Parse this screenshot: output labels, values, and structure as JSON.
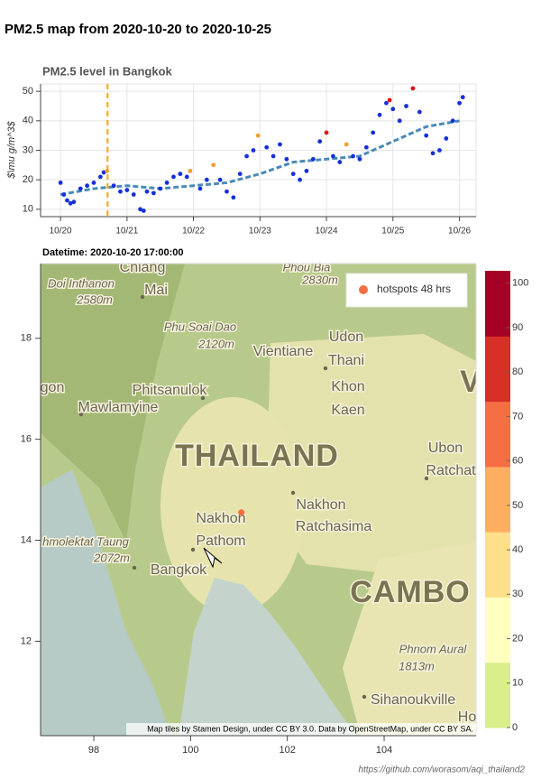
{
  "title": "PM2.5 map from 2020-10-20 to 2020-10-25",
  "footer": "https://github.com/worasom/aqi_thailand2",
  "chart_data": [
    {
      "type": "scatter",
      "title": "PM2.5 level in Bangkok",
      "y_label": "$\\mu g/m^3$",
      "xlim": [
        -0.3,
        6.25
      ],
      "ylim": [
        7.5,
        52.5
      ],
      "xticks": [
        {
          "value": 0,
          "label": "10/20"
        },
        {
          "value": 1,
          "label": "10/21"
        },
        {
          "value": 2,
          "label": "10/22"
        },
        {
          "value": 3,
          "label": "10/23"
        },
        {
          "value": 4,
          "label": "10/24"
        },
        {
          "value": 5,
          "label": "10/25"
        },
        {
          "value": 6,
          "label": "10/26"
        }
      ],
      "yticks": [
        10,
        20,
        30,
        40,
        50
      ],
      "grid": true,
      "vline": 0.708,
      "vline_color": "#ffa500",
      "series": [
        {
          "kind": "scatter",
          "color": "#1530d8",
          "x": [
            0,
            0.05,
            0.1,
            0.15,
            0.2,
            0.3,
            0.4,
            0.5,
            0.6,
            0.65,
            0.8,
            0.9,
            1.0,
            1.1,
            1.2,
            1.25,
            1.3,
            1.4,
            1.5,
            1.6,
            1.7,
            1.8,
            1.9,
            2.1,
            2.2,
            2.4,
            2.5,
            2.6,
            2.7,
            2.8,
            2.9,
            3.1,
            3.2,
            3.3,
            3.4,
            3.5,
            3.6,
            3.7,
            3.8,
            3.9,
            4.1,
            4.2,
            4.4,
            4.5,
            4.6,
            4.7,
            4.8,
            4.9,
            5.0,
            5.1,
            5.2,
            5.4,
            5.5,
            5.6,
            5.7,
            5.8,
            5.9,
            6.0,
            6.05
          ],
          "values": [
            19,
            15,
            13,
            12,
            12.5,
            17,
            18,
            19,
            21,
            22.5,
            18,
            16,
            16.5,
            15,
            10,
            9.5,
            16,
            15.5,
            17,
            19,
            21,
            22,
            21,
            17,
            20,
            20,
            16,
            14,
            22,
            28,
            30,
            31,
            28,
            32,
            27,
            22,
            20,
            23,
            27,
            33,
            28,
            26,
            28,
            27,
            31,
            36,
            42,
            46,
            44,
            40,
            45,
            43,
            35,
            29,
            30,
            34,
            40,
            46,
            48
          ]
        },
        {
          "kind": "scatter",
          "color": "#f0a030",
          "x": [
            0.7,
            1.95,
            2.3,
            2.97,
            4.3
          ],
          "values": [
            23,
            23,
            25,
            35,
            32
          ]
        },
        {
          "kind": "scatter",
          "color": "#e01010",
          "x": [
            4.0,
            4.95,
            5.3
          ],
          "values": [
            36,
            47,
            51
          ]
        },
        {
          "kind": "dashed-line",
          "color": "#4a8ab8",
          "x": [
            0,
            0.5,
            1,
            1.5,
            2,
            2.5,
            3,
            3.5,
            4,
            4.5,
            5,
            5.5,
            6
          ],
          "values": [
            15,
            17,
            18,
            17,
            18,
            19,
            22,
            26,
            27,
            28,
            33,
            38,
            40
          ]
        }
      ]
    },
    {
      "type": "map",
      "title": "Datetime: 2020-10-20 17:00:00",
      "xlim": [
        96.9,
        105.9
      ],
      "ylim": [
        10.13,
        19.48
      ],
      "xticks": [
        98,
        100,
        102,
        104
      ],
      "yticks": [
        12,
        14,
        16,
        18
      ],
      "legend": "top-right",
      "series": [
        {
          "name": "hotspots 48 hrs",
          "color": "#f46d43",
          "x": [
            101.05
          ],
          "values": [
            14.55
          ]
        }
      ],
      "colorbar": {
        "lim": [
          0,
          102.8
        ],
        "ticks": [
          0,
          10,
          20,
          30,
          40,
          50,
          60,
          70,
          80,
          90,
          100
        ],
        "colors": [
          "#d9ef8b",
          "#ffffbf",
          "#fee08b",
          "#fdae61",
          "#f46d43",
          "#d73027",
          "#a50026"
        ]
      },
      "place_labels": [
        "Chiang",
        "Mai",
        "Doi Inthanon",
        "2580m",
        "Phou Bia",
        "2830m",
        "Phu Soai Dao",
        "2120m",
        "Vientiane",
        "Udon",
        "Thani",
        "Khon",
        "Kaen",
        "Phitsanulok",
        "Mawlamyine",
        "THAILAND",
        "Ubon",
        "Ratchat",
        "Nakhon",
        "Ratchasima",
        "Nakhon",
        "Pathom",
        "Bangkok",
        "hmolektat Taung",
        "2072m",
        "CAMBO",
        "Phnom Aural",
        "1813m",
        "Sihanoukville",
        "gon",
        "Ho",
        "V"
      ],
      "attribution": "Map tiles by Stamen Design, under CC BY 3.0. Data by OpenStreetMap, under CC BY SA."
    }
  ]
}
